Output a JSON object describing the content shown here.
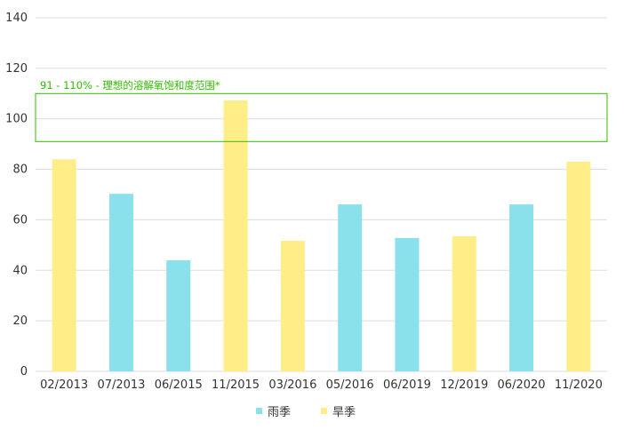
{
  "chart_data": {
    "type": "bar",
    "categories": [
      "02/2013",
      "07/2013",
      "06/2015",
      "11/2015",
      "03/2016",
      "05/2016",
      "06/2019",
      "12/2019",
      "06/2020",
      "11/2020"
    ],
    "values": [
      84,
      70.3,
      44,
      107.3,
      51.7,
      66.1,
      52.8,
      53.5,
      66.1,
      83
    ],
    "bar_series": [
      "旱季",
      "雨季",
      "雨季",
      "旱季",
      "旱季",
      "雨季",
      "雨季",
      "旱季",
      "雨季",
      "旱季"
    ],
    "series": [
      {
        "name": "雨季",
        "color": "#8ae1ec"
      },
      {
        "name": "旱季",
        "color": "#ffee88"
      }
    ],
    "ylim": [
      0,
      140
    ],
    "yticks": [
      0,
      20,
      40,
      60,
      80,
      100,
      120,
      140
    ],
    "grid": true,
    "legend": "bottom",
    "band": {
      "from": 91,
      "to": 110,
      "label": "91 - 110% - 理想的溶解氧饱和度范围*",
      "color": "#33bb00"
    }
  }
}
